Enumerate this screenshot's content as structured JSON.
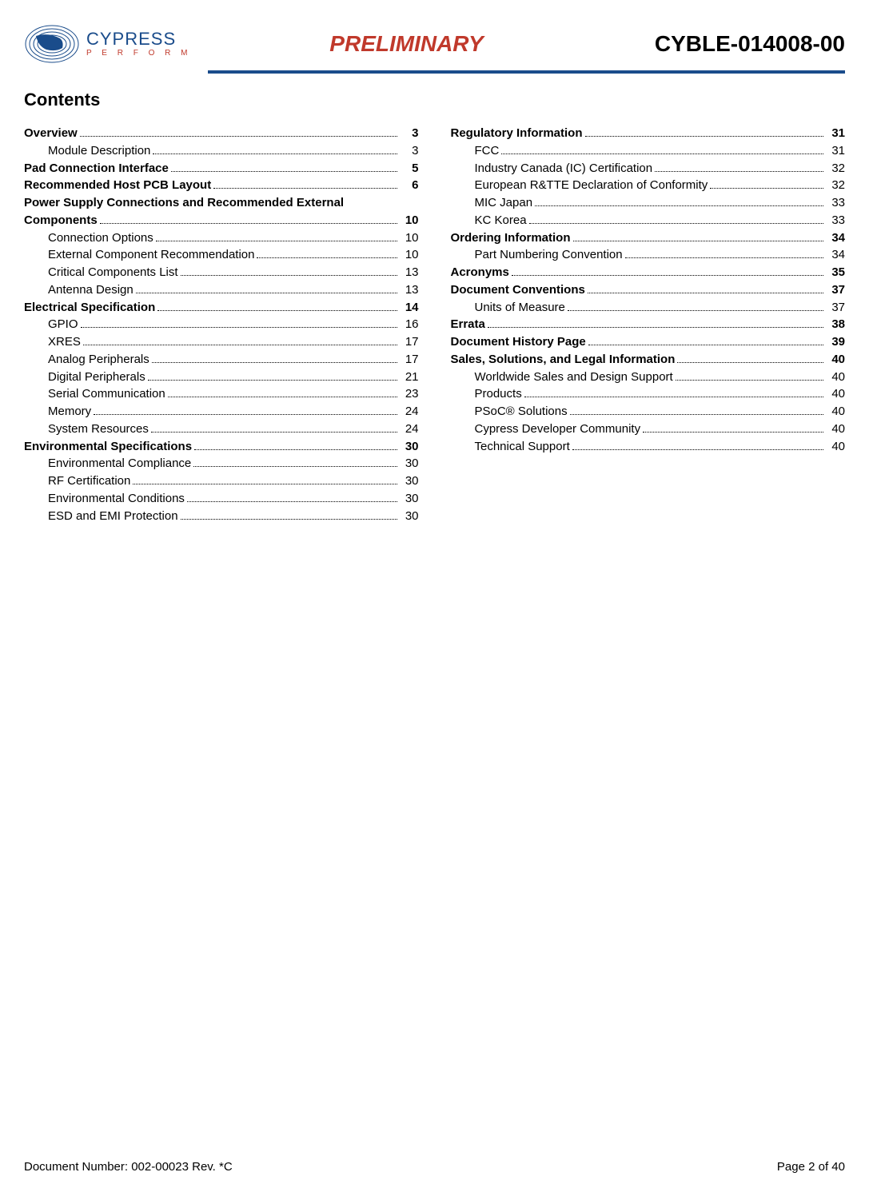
{
  "header": {
    "brand": "CYPRESS",
    "tagline": "P E R F O R M",
    "center": "PRELIMINARY",
    "right": "CYBLE-014008-00"
  },
  "title": "Contents",
  "toc": {
    "left": [
      {
        "label": "Overview",
        "page": "3",
        "bold": true
      },
      {
        "label": "Module Description",
        "page": "3",
        "sub": true
      },
      {
        "label": "Pad Connection Interface",
        "page": "5",
        "bold": true
      },
      {
        "label": "Recommended Host PCB Layout",
        "page": "6",
        "bold": true
      },
      {
        "label": "Power Supply Connections and Recommended External Components",
        "page": "10",
        "bold": true,
        "wrap": true
      },
      {
        "label": "Connection Options",
        "page": "10",
        "sub": true
      },
      {
        "label": "External Component Recommendation",
        "page": "10",
        "sub": true
      },
      {
        "label": "Critical Components List",
        "page": "13",
        "sub": true
      },
      {
        "label": "Antenna Design",
        "page": "13",
        "sub": true
      },
      {
        "label": "Electrical Specification",
        "page": "14",
        "bold": true
      },
      {
        "label": "GPIO",
        "page": "16",
        "sub": true
      },
      {
        "label": "XRES",
        "page": "17",
        "sub": true
      },
      {
        "label": "Analog Peripherals",
        "page": "17",
        "sub": true
      },
      {
        "label": "Digital Peripherals",
        "page": "21",
        "sub": true
      },
      {
        "label": "Serial Communication",
        "page": "23",
        "sub": true
      },
      {
        "label": "Memory",
        "page": "24",
        "sub": true
      },
      {
        "label": "System Resources",
        "page": "24",
        "sub": true
      },
      {
        "label": "Environmental Specifications",
        "page": "30",
        "bold": true
      },
      {
        "label": "Environmental Compliance",
        "page": "30",
        "sub": true
      },
      {
        "label": "RF Certification",
        "page": "30",
        "sub": true
      },
      {
        "label": "Environmental Conditions",
        "page": "30",
        "sub": true
      },
      {
        "label": "ESD and EMI Protection",
        "page": "30",
        "sub": true
      }
    ],
    "right": [
      {
        "label": "Regulatory Information",
        "page": "31",
        "bold": true
      },
      {
        "label": "FCC",
        "page": "31",
        "sub": true
      },
      {
        "label": "Industry Canada (IC) Certification",
        "page": "32",
        "sub": true
      },
      {
        "label": "European R&TTE Declaration of Conformity",
        "page": "32",
        "sub": true
      },
      {
        "label": "MIC Japan",
        "page": "33",
        "sub": true
      },
      {
        "label": "KC Korea",
        "page": "33",
        "sub": true
      },
      {
        "label": "Ordering Information",
        "page": "34",
        "bold": true
      },
      {
        "label": "Part Numbering Convention",
        "page": "34",
        "sub": true
      },
      {
        "label": "Acronyms",
        "page": "35",
        "bold": true
      },
      {
        "label": "Document Conventions",
        "page": "37",
        "bold": true
      },
      {
        "label": "Units of Measure",
        "page": "37",
        "sub": true
      },
      {
        "label": "Errata",
        "page": "38",
        "bold": true
      },
      {
        "label": "Document History Page",
        "page": "39",
        "bold": true
      },
      {
        "label": "Sales, Solutions, and Legal Information",
        "page": "40",
        "bold": true
      },
      {
        "label": "Worldwide Sales and Design Support",
        "page": "40",
        "sub": true
      },
      {
        "label": "Products",
        "page": "40",
        "sub": true
      },
      {
        "label": "PSoC® Solutions",
        "page": "40",
        "sub": true
      },
      {
        "label": "Cypress Developer Community",
        "page": "40",
        "sub": true
      },
      {
        "label": "Technical Support",
        "page": "40",
        "sub": true
      }
    ]
  },
  "footer": {
    "left": "Document Number: 002-00023 Rev. *C",
    "right": "Page 2 of 40"
  },
  "colors": {
    "accent_blue": "#1a4c8b",
    "accent_red": "#c0392b"
  }
}
